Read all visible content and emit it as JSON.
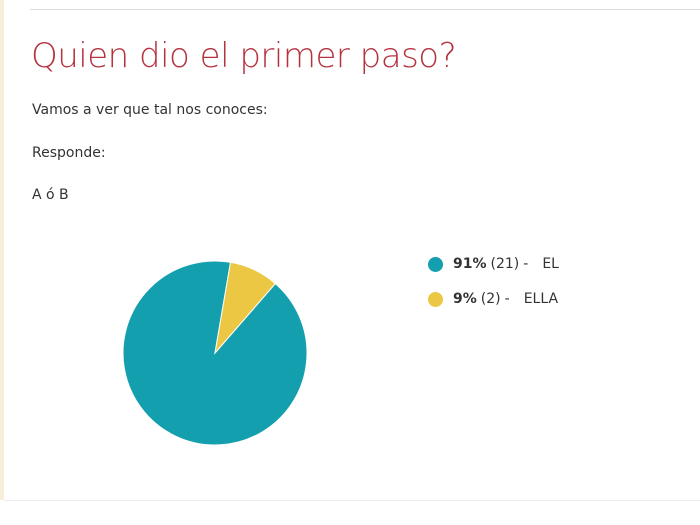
{
  "poll": {
    "title": "Quien dio el primer paso?",
    "lines": [
      "Vamos a ver que tal nos conoces:",
      "Responde:",
      "A ó B"
    ]
  },
  "chart_data": {
    "type": "pie",
    "categories": [
      "EL",
      "ELLA"
    ],
    "values": [
      21,
      2
    ],
    "percent_labels": [
      "91%",
      "9%"
    ],
    "count_labels": [
      "(21)",
      "(2)"
    ],
    "separator": "-",
    "colors": [
      "#139fad",
      "#ebc743"
    ],
    "start_angle_deg": -49,
    "legend_position": "right"
  }
}
